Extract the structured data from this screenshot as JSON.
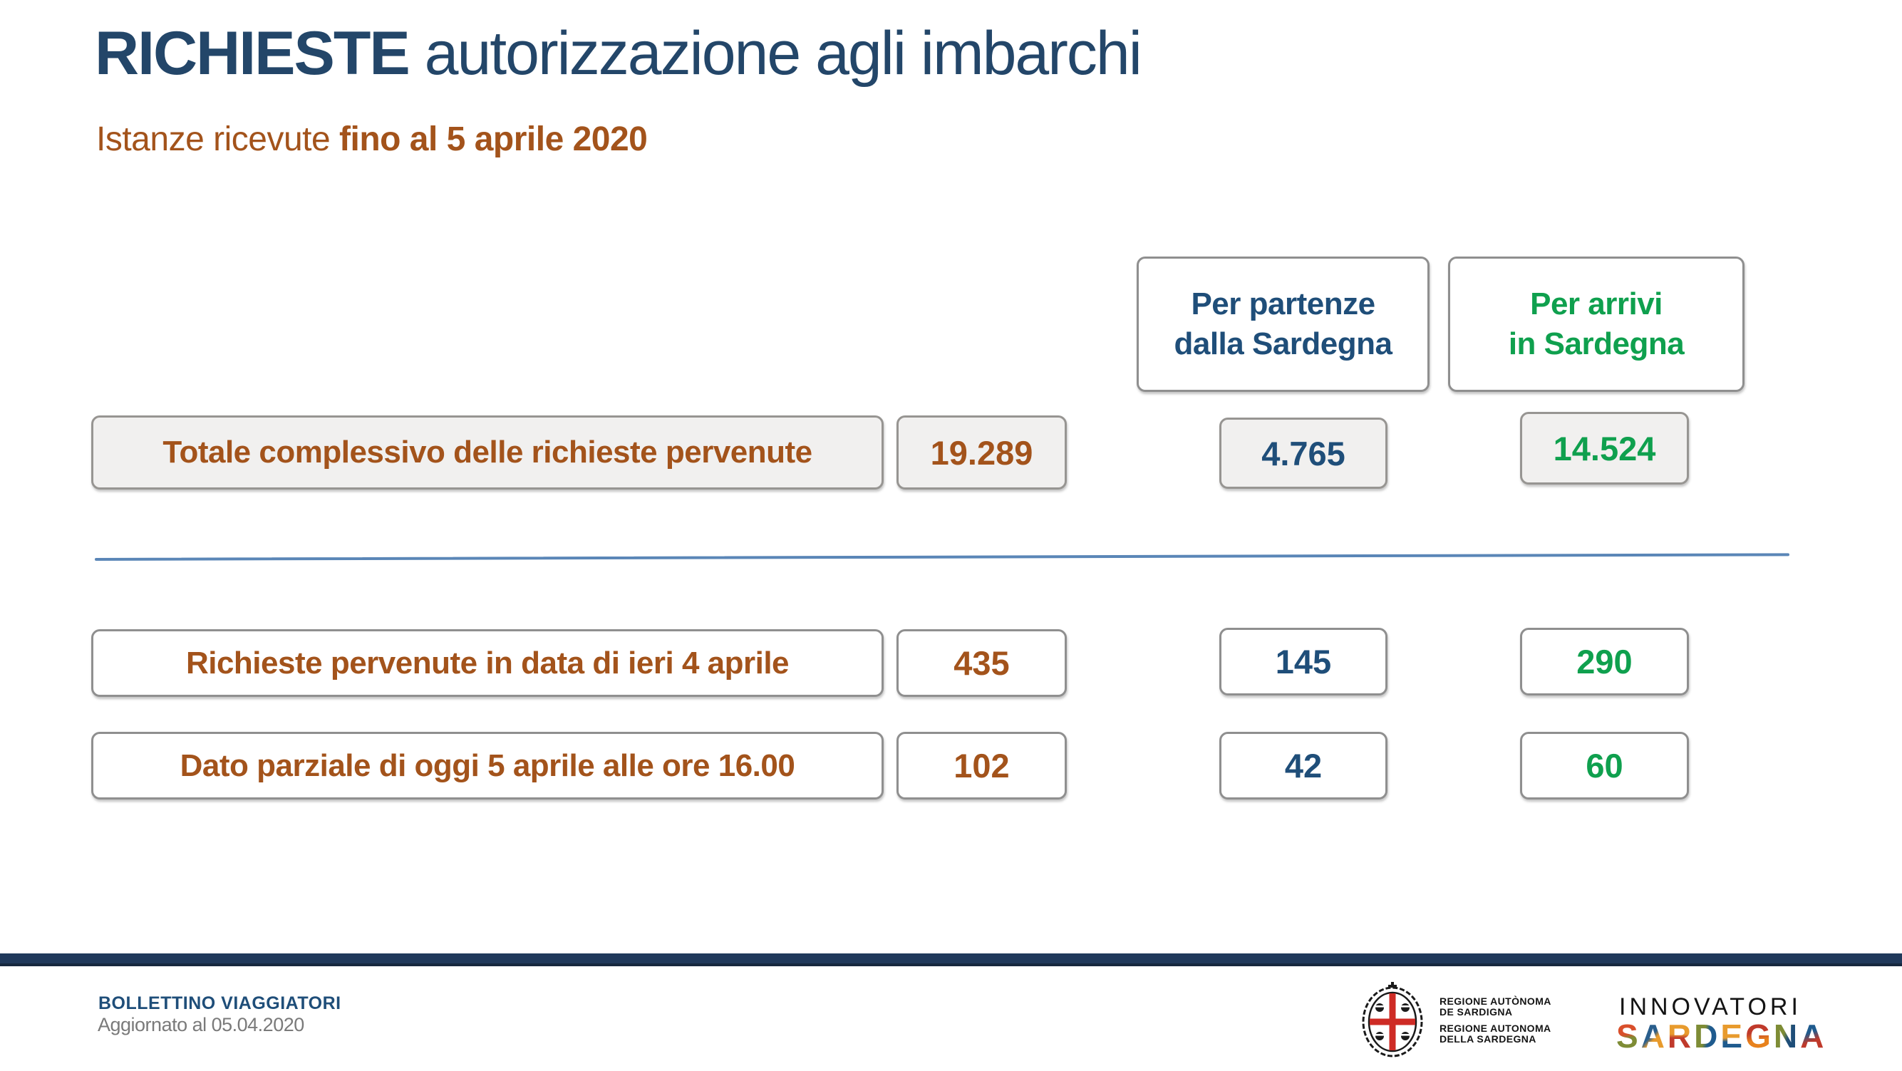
{
  "slide": {
    "title_bold": "RICHIESTE",
    "title_rest": " autorizzazione agli imbarchi",
    "subtitle_regular": "Istanze ricevute ",
    "subtitle_bold": "fino al 5 aprile 2020"
  },
  "table": {
    "column_headers": [
      {
        "line1": "Per partenze",
        "line2": "dalla Sardegna",
        "color": "#1F4E79"
      },
      {
        "line1": "Per arrivi",
        "line2": "in Sardegna",
        "color": "#0FA04E"
      }
    ],
    "rows": [
      {
        "label": "Totale complessivo delle richieste pervenute",
        "values": {
          "total": "19.289",
          "partenze": "4.765",
          "arrivi": "14.524"
        }
      },
      {
        "label": "Richieste pervenute in data di ieri 4 aprile",
        "values": {
          "total": "435",
          "partenze": "145",
          "arrivi": "290"
        }
      },
      {
        "label": "Dato parziale di oggi 5 aprile alle ore 16.00",
        "values": {
          "total": "102",
          "partenze": "42",
          "arrivi": "60"
        }
      }
    ]
  },
  "footer": {
    "bulletin_title": "BOLLETTINO VIAGGIATORI",
    "updated": "Aggiornato al 05.04.2020",
    "region_logo_lines": {
      "l1": "REGIONE AUTÒNOMA",
      "l2": "DE SARDIGNA",
      "l3": "REGIONE AUTONOMA",
      "l4": "DELLA SARDEGNA"
    },
    "innovatori_line1": "INNOVATORI",
    "innovatori_line2": "SARDEGNA"
  },
  "colors": {
    "title_navy": "#234669",
    "rust": "#A3531B",
    "blue": "#1F4E79",
    "green": "#0FA04E",
    "divider_blue": "#5A86B7",
    "footer_bar_navy": "#20395B"
  }
}
